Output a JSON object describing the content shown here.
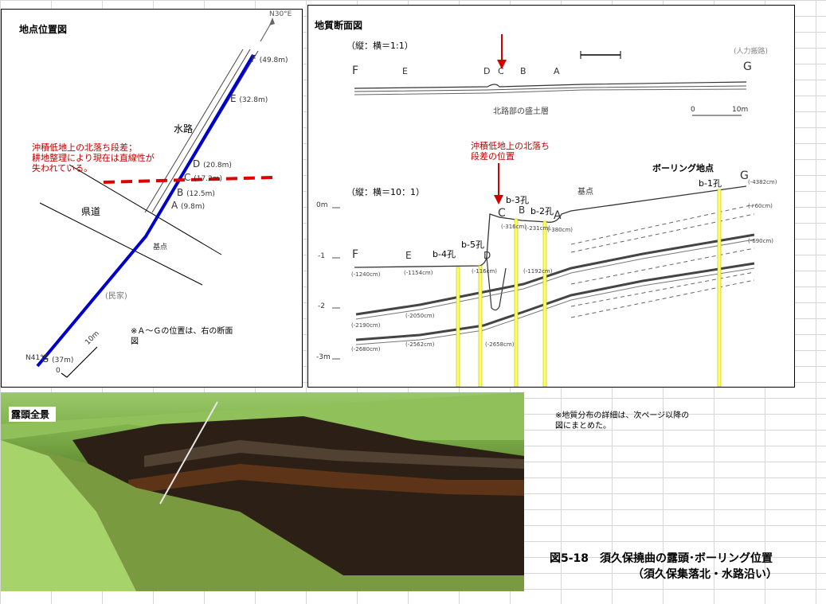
{
  "location_map": {
    "title": "地点位置図",
    "north_label": "N30°E",
    "canal_label": "水路",
    "road_label": "県道",
    "kenten_label": "基点",
    "minka_label": "(民家)",
    "south_label": "N41°E",
    "scale_label": "10m",
    "scale_zero": "0",
    "points": [
      {
        "id": "F",
        "label": "F",
        "dist": "(49.8m)"
      },
      {
        "id": "E",
        "label": "E",
        "dist": "(32.8m)"
      },
      {
        "id": "D",
        "label": "D",
        "dist": "(20.8m)"
      },
      {
        "id": "C",
        "label": "C",
        "dist": "(17.2m)"
      },
      {
        "id": "B",
        "label": "B",
        "dist": "(12.5m)"
      },
      {
        "id": "A",
        "label": "A",
        "dist": "(9.8m)"
      },
      {
        "id": "G",
        "label": "G",
        "dist": "(37m)"
      }
    ],
    "annotation_lines": [
      "沖積低地上の北落ち段差；",
      "耕地整理により現在は直線性が",
      "失われている。"
    ],
    "footnote_lines": [
      "※Ａ～Ｇの位置は、右の断面",
      "図"
    ]
  },
  "section": {
    "title": "地質断面図",
    "ratio1": "（縦：横＝1:1）",
    "ratio2": "（縦：横＝10：1）",
    "upper_letters": [
      "F",
      "E",
      "D",
      "C",
      "B",
      "A",
      "G"
    ],
    "upper_note": "北路部の盛土層",
    "upper_right_note": "(人力搬路)",
    "scale_zero": "0",
    "scale_ten": "10m",
    "step_annotation": [
      "沖積低地上の北落ち",
      "段差の位置"
    ],
    "boring_header": "ボーリング地点",
    "kenten_label": "基点",
    "depth_labels": [
      "0m",
      "-1",
      "-2",
      "-3m"
    ],
    "lower_letters": [
      "F",
      "E",
      "D",
      "C",
      "B",
      "A",
      "G"
    ],
    "boreholes": [
      "b-4孔",
      "b-5孔",
      "b-3孔",
      "b-2孔",
      "b-1孔"
    ],
    "elevation_notes": [
      "(-1240cm)",
      "(-1154cm)",
      "(-116cm)",
      "(-316cm)",
      "(-231cm)",
      "(-380cm)",
      "(-1192cm)",
      "(-4382cm)",
      "(+60cm)",
      "(-690cm)",
      "(-2190cm)",
      "(-2050cm)",
      "(-2680cm)",
      "(-2562cm)",
      "(-2658cm)"
    ]
  },
  "photo": {
    "title": "露頭全景"
  },
  "note_lines": [
    "※地質分布の詳細は、次ページ以降の",
    "図にまとめた。"
  ],
  "caption": {
    "line1": "図5-18　須久保撓曲の露頭･ボーリング位置",
    "line2": "（須久保集落北・水路沿い）"
  },
  "colors": {
    "canal": "#0000cc",
    "annotation": "#c00000",
    "borehole": "#ffff66"
  }
}
